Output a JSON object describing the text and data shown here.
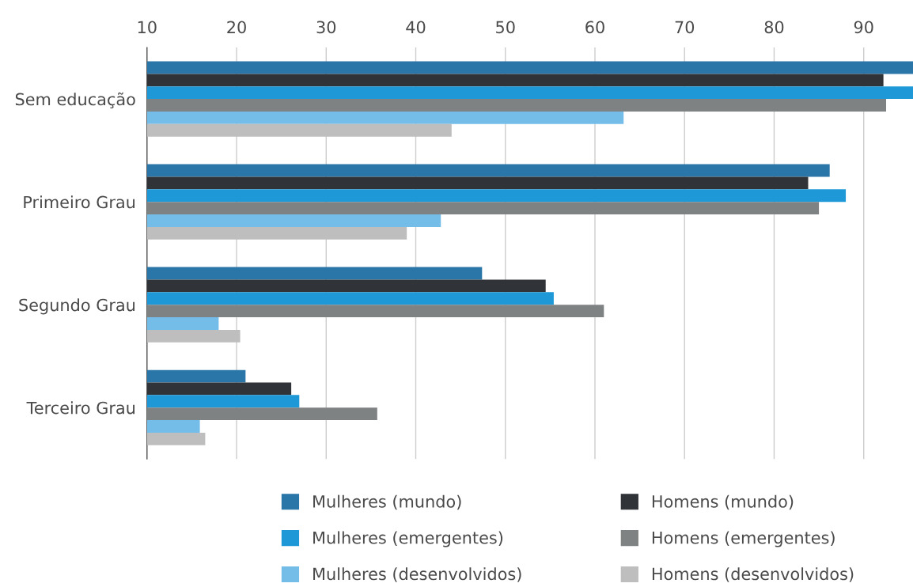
{
  "chart_data": {
    "type": "bar",
    "orientation": "horizontal",
    "categories": [
      "Sem educação",
      "Primeiro Grau",
      "Segundo Grau",
      "Terceiro Grau"
    ],
    "series": [
      {
        "name": "Mulheres (mundo)",
        "color": "#2a76a8",
        "values": [
          95.5,
          86.2,
          47.4,
          21.0
        ]
      },
      {
        "name": "Homens (mundo)",
        "color": "#303438",
        "values": [
          92.2,
          83.8,
          54.5,
          26.1
        ]
      },
      {
        "name": "Mulheres (emergentes)",
        "color": "#1e98d6",
        "values": [
          95.5,
          88.0,
          55.4,
          27.0
        ]
      },
      {
        "name": "Homens (emergentes)",
        "color": "#7f8283",
        "values": [
          92.5,
          85.0,
          61.0,
          35.7
        ]
      },
      {
        "name": "Mulheres (desenvolvidos)",
        "color": "#74bde8",
        "values": [
          63.2,
          42.8,
          18.0,
          15.9
        ]
      },
      {
        "name": "Homens (desenvolvidos)",
        "color": "#bebebe",
        "values": [
          44.0,
          39.0,
          20.4,
          16.5
        ]
      }
    ],
    "xlim": [
      10,
      95.5
    ],
    "xticks": [
      10,
      20,
      30,
      40,
      50,
      60,
      70,
      80,
      90
    ],
    "grid": "x",
    "legend": "bottom"
  }
}
